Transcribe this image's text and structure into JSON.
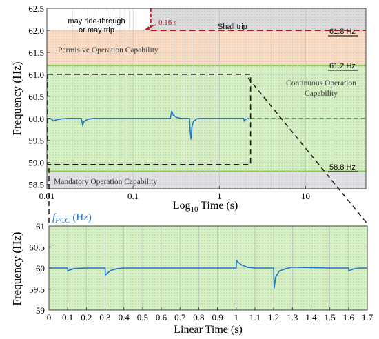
{
  "colors": {
    "trip_line": "#c0141c",
    "continuous_fill": "#d8f0c8",
    "continuous_edge": "#8ccd50",
    "permissive_fill": "#f7ddc8",
    "mandatory_fill": "#e2e2e6",
    "shall_trip_fill": "#dcdcdc",
    "signal": "#1f77c8",
    "dashed_box": "#1a1a1a",
    "green_dash": "#3a9a3a"
  },
  "chart_data": [
    {
      "type": "line",
      "xlabel_prefix": "Log",
      "xlabel_sub": "10",
      "xlabel_suffix": " Time (s)",
      "ylabel": "Frequency (Hz)",
      "x_scale": "log",
      "xlim": [
        0.01,
        50
      ],
      "ylim": [
        58.4,
        62.5
      ],
      "xticks": [
        {
          "value": 0.01,
          "label": "0.01"
        },
        {
          "value": 0.1,
          "label": "0.1"
        },
        {
          "value": 1,
          "label": "1"
        },
        {
          "value": 10,
          "label": "10"
        }
      ],
      "yticks": [
        {
          "value": 58.5,
          "label": "58.5"
        },
        {
          "value": 59.0,
          "label": "59.0"
        },
        {
          "value": 59.5,
          "label": "59.5"
        },
        {
          "value": 60.0,
          "label": "60.0"
        },
        {
          "value": 60.5,
          "label": "60.5"
        },
        {
          "value": 61.0,
          "label": "61.0"
        },
        {
          "value": 61.5,
          "label": "61.5"
        },
        {
          "value": 62.0,
          "label": "62.0"
        },
        {
          "value": 62.5,
          "label": "62.5"
        }
      ],
      "regions": [
        {
          "name": "Shall trip",
          "y_from": 62.0,
          "y_to": 62.5,
          "x_from": 0.16,
          "x_to": 50
        },
        {
          "name": "may ride-through or may trip",
          "lines": [
            "may ride-through",
            "or may trip"
          ],
          "y_from": 62.0,
          "y_to": 62.5,
          "x_from": 0.01,
          "x_to": 0.16
        },
        {
          "name": "Permisive Operation Capability",
          "y_from": 61.2,
          "y_to": 62.0
        },
        {
          "name": "Continuous Operation Capability",
          "lines": [
            "Continuous Operation",
            "Capability"
          ],
          "y_from": 58.8,
          "y_to": 61.2
        },
        {
          "name": "Mandatory Operation Capability",
          "y_from": 58.4,
          "y_to": 58.8
        }
      ],
      "thresholds": [
        {
          "label": "61.8 Hz",
          "value": 61.8
        },
        {
          "label": "61.2 Hz",
          "value": 61.2
        },
        {
          "label": "58.8 Hz",
          "value": 58.8
        }
      ],
      "trip_time": {
        "label": "0.16 s",
        "value": 0.16,
        "trip_level": 62.0
      },
      "zoom_box": {
        "x_from": 0.01,
        "x_to": 2.3,
        "y_from": 58.95,
        "y_to": 61.0
      },
      "series": [
        {
          "name": "fPCC",
          "points": [
            [
              0.01,
              60.0
            ],
            [
              0.011,
              60.0
            ],
            [
              0.012,
              59.94
            ],
            [
              0.013,
              59.97
            ],
            [
              0.015,
              59.99
            ],
            [
              0.018,
              60.0
            ],
            [
              0.025,
              60.0
            ],
            [
              0.026,
              59.85
            ],
            [
              0.027,
              59.93
            ],
            [
              0.03,
              59.98
            ],
            [
              0.035,
              60.0
            ],
            [
              0.1,
              60.0
            ],
            [
              0.2,
              60.0
            ],
            [
              0.27,
              60.0
            ],
            [
              0.28,
              60.17
            ],
            [
              0.29,
              60.08
            ],
            [
              0.32,
              60.02
            ],
            [
              0.36,
              60.0
            ],
            [
              0.45,
              60.0
            ],
            [
              0.46,
              59.68
            ],
            [
              0.47,
              59.52
            ],
            [
              0.48,
              59.8
            ],
            [
              0.5,
              59.93
            ],
            [
              0.55,
              59.99
            ],
            [
              0.6,
              60.0
            ],
            [
              1.0,
              60.0
            ],
            [
              1.5,
              60.0
            ],
            [
              1.9,
              60.0
            ],
            [
              1.95,
              59.94
            ],
            [
              2.0,
              59.97
            ],
            [
              2.1,
              59.99
            ],
            [
              2.2,
              60.0
            ]
          ]
        }
      ]
    },
    {
      "type": "line",
      "xlabel": "Linear Time (s)",
      "ylabel": "Frequency (Hz)",
      "x_scale": "linear",
      "xlim": [
        0,
        1.7
      ],
      "ylim": [
        59,
        61
      ],
      "xticks": [
        "0",
        "0.1",
        "0.2",
        "0.3",
        "0.4",
        "0.5",
        "0.6",
        "0.7",
        "0.8",
        "0.9",
        "1",
        "1.1",
        "1.2",
        "1.3",
        "1.4",
        "1.5",
        "1.6",
        "1.7"
      ],
      "yticks": [
        "59",
        "59.5",
        "60",
        "60.5",
        "61"
      ],
      "legend": {
        "symbol_main": "f",
        "symbol_sub": "PCC",
        "unit": " (Hz)",
        "position": "top-left"
      },
      "series": [
        {
          "name": "fPCC",
          "points": [
            [
              0.0,
              60.0
            ],
            [
              0.1,
              60.0
            ],
            [
              0.101,
              59.93
            ],
            [
              0.11,
              59.95
            ],
            [
              0.13,
              59.98
            ],
            [
              0.16,
              59.995
            ],
            [
              0.2,
              60.0
            ],
            [
              0.3,
              60.0
            ],
            [
              0.301,
              59.83
            ],
            [
              0.31,
              59.87
            ],
            [
              0.33,
              59.94
            ],
            [
              0.36,
              59.98
            ],
            [
              0.4,
              60.0
            ],
            [
              1.0,
              60.0
            ],
            [
              1.001,
              60.18
            ],
            [
              1.01,
              60.14
            ],
            [
              1.03,
              60.07
            ],
            [
              1.06,
              60.02
            ],
            [
              1.1,
              60.0
            ],
            [
              1.2,
              60.0
            ],
            [
              1.201,
              59.75
            ],
            [
              1.203,
              59.52
            ],
            [
              1.21,
              59.78
            ],
            [
              1.23,
              59.93
            ],
            [
              1.27,
              59.99
            ],
            [
              1.3,
              60.02
            ],
            [
              1.4,
              60.01
            ],
            [
              1.5,
              60.0
            ],
            [
              1.6,
              60.0
            ],
            [
              1.601,
              59.93
            ],
            [
              1.61,
              59.95
            ],
            [
              1.63,
              59.98
            ],
            [
              1.66,
              60.0
            ],
            [
              1.7,
              60.0
            ]
          ]
        }
      ]
    }
  ]
}
